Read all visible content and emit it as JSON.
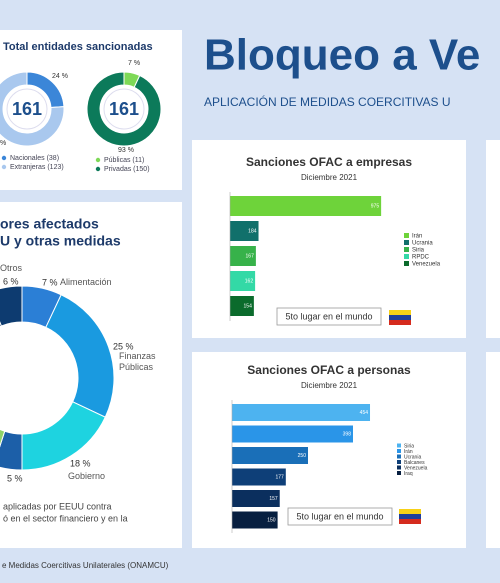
{
  "header": {
    "title": "Bloqueo a Ve",
    "subtitle": "APLICACIÓN DE MEDIDAS COERCITIVAS U"
  },
  "footer": "e Medidas Coercitivas Unilaterales (ONAMCU)",
  "chart_data": [
    {
      "type": "donut",
      "title": "Total entidades sancionadas",
      "center_label": "161",
      "categories": [
        "Nacionales (38)",
        "Extranjeras (123)"
      ],
      "values": [
        24,
        76
      ],
      "value_labels": [
        "24 %",
        "%"
      ],
      "colors": [
        "#3b86d8",
        "#a9c8ee"
      ]
    },
    {
      "type": "donut",
      "center_label": "161",
      "categories": [
        "Públicas (11)",
        "Privadas (150)"
      ],
      "values": [
        7,
        93
      ],
      "value_labels": [
        "7 %",
        "93 %"
      ],
      "colors": [
        "#7ed957",
        "#0c7a5a"
      ]
    },
    {
      "type": "donut",
      "title": [
        "ores afectados",
        "U y otras medidas"
      ],
      "caption": [
        "aplicadas por EEUU contra",
        "ó en el sector financiero y en la"
      ],
      "categories": [
        "Alimentación",
        "Finanzas Públicas",
        "Gobierno",
        null,
        null,
        null,
        "Otros"
      ],
      "values": [
        7,
        25,
        18,
        5,
        4,
        35,
        6
      ],
      "value_labels": [
        "7 %",
        "25 %",
        "18 %",
        "5 %",
        null,
        null,
        "6 %"
      ],
      "colors": [
        "#2b7fd6",
        "#1a9ae0",
        "#1ed3e0",
        "#1c5fa8",
        "#8fd36a",
        "#0b2a5a",
        "#0d3b70"
      ]
    },
    {
      "type": "bar",
      "title": "Sanciones OFAC a empresas",
      "subtitle": "Diciembre 2021",
      "categories": [
        "Irán",
        "Ucrania",
        "Siria",
        "RPDC",
        "Venezuela"
      ],
      "values": [
        975,
        184,
        167,
        162,
        154
      ],
      "colors": [
        "#6ed33a",
        "#11706b",
        "#37b24a",
        "#33d9a6",
        "#0b6b2c"
      ],
      "xlim": [
        0,
        1000
      ],
      "note": "5to lugar en el mundo"
    },
    {
      "type": "bar",
      "title": "Sanciones OFAC a personas",
      "subtitle": "Diciembre 2021",
      "categories": [
        "Siria",
        "Irán",
        "Ucrania",
        "Balcanes",
        "Venezuela",
        "Iraq"
      ],
      "values": [
        454,
        398,
        250,
        177,
        157,
        150
      ],
      "colors": [
        "#4db3f0",
        "#2a95e8",
        "#1a6fb8",
        "#0e3f78",
        "#0b2f5e",
        "#071f40"
      ],
      "xlim": [
        0,
        500
      ],
      "note": "5to lugar en el mundo"
    }
  ]
}
